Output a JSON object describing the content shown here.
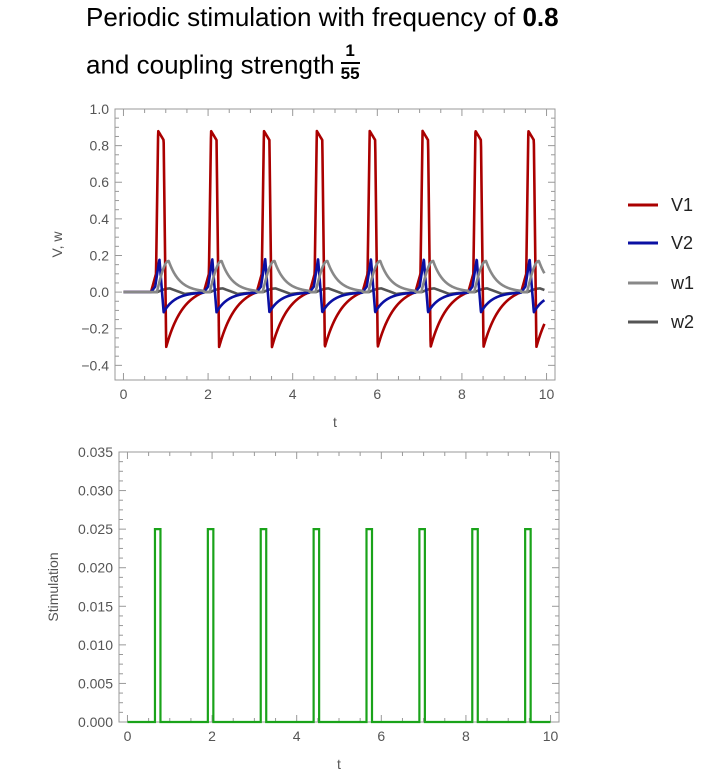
{
  "title": {
    "line1_prefix": "Periodic stimulation with frequency of ",
    "line1_value": "0.8",
    "line2_prefix": "and coupling strength",
    "frac_num": "1",
    "frac_den": "55"
  },
  "chart_data": [
    {
      "type": "line",
      "xlabel": "t",
      "ylabel": "V, w",
      "xlim": [
        -0.2,
        10.2
      ],
      "ylim": [
        -0.48,
        1.0
      ],
      "x_ticks": [
        0,
        2,
        4,
        6,
        8,
        10
      ],
      "y_ticks": [
        -0.4,
        -0.2,
        0.0,
        0.2,
        0.4,
        0.6,
        0.8,
        1.0
      ],
      "y_tick_labels": [
        "−0.4",
        "−0.2",
        "0.0",
        "0.2",
        "0.4",
        "0.6",
        "0.8",
        "1.0"
      ],
      "pulse_times": [
        0.65,
        1.9,
        3.15,
        4.4,
        5.65,
        6.9,
        8.15,
        9.4
      ],
      "legend_position": "right",
      "series": [
        {
          "name": "V1",
          "color": "#aa0000",
          "peak": 0.88,
          "trough": -0.3,
          "rest": 0.0
        },
        {
          "name": "V2",
          "color": "#0b10a3",
          "peak": 0.18,
          "trough": -0.11,
          "rest": 0.0
        },
        {
          "name": "w1",
          "color": "#888888",
          "peak": 0.17,
          "trough": 0.0,
          "rest": 0.0
        },
        {
          "name": "w2",
          "color": "#555555",
          "peak": 0.02,
          "trough": -0.01,
          "rest": 0.0
        }
      ]
    },
    {
      "type": "line",
      "xlabel": "t",
      "ylabel": "Stimulation",
      "xlim": [
        -0.2,
        10.2
      ],
      "ylim": [
        0,
        0.035
      ],
      "x_ticks": [
        0,
        2,
        4,
        6,
        8,
        10
      ],
      "y_ticks": [
        0,
        0.005,
        0.01,
        0.015,
        0.02,
        0.025,
        0.03,
        0.035
      ],
      "y_tick_labels": [
        "0.000",
        "0.005",
        "0.010",
        "0.015",
        "0.020",
        "0.025",
        "0.030",
        "0.035"
      ],
      "series": [
        {
          "name": "",
          "color": "#1aa31a",
          "pulse_starts": [
            0.65,
            1.9,
            3.15,
            4.4,
            5.65,
            6.9,
            8.15,
            9.4
          ],
          "pulse_width": 0.13,
          "amplitude": 0.025
        }
      ]
    }
  ]
}
